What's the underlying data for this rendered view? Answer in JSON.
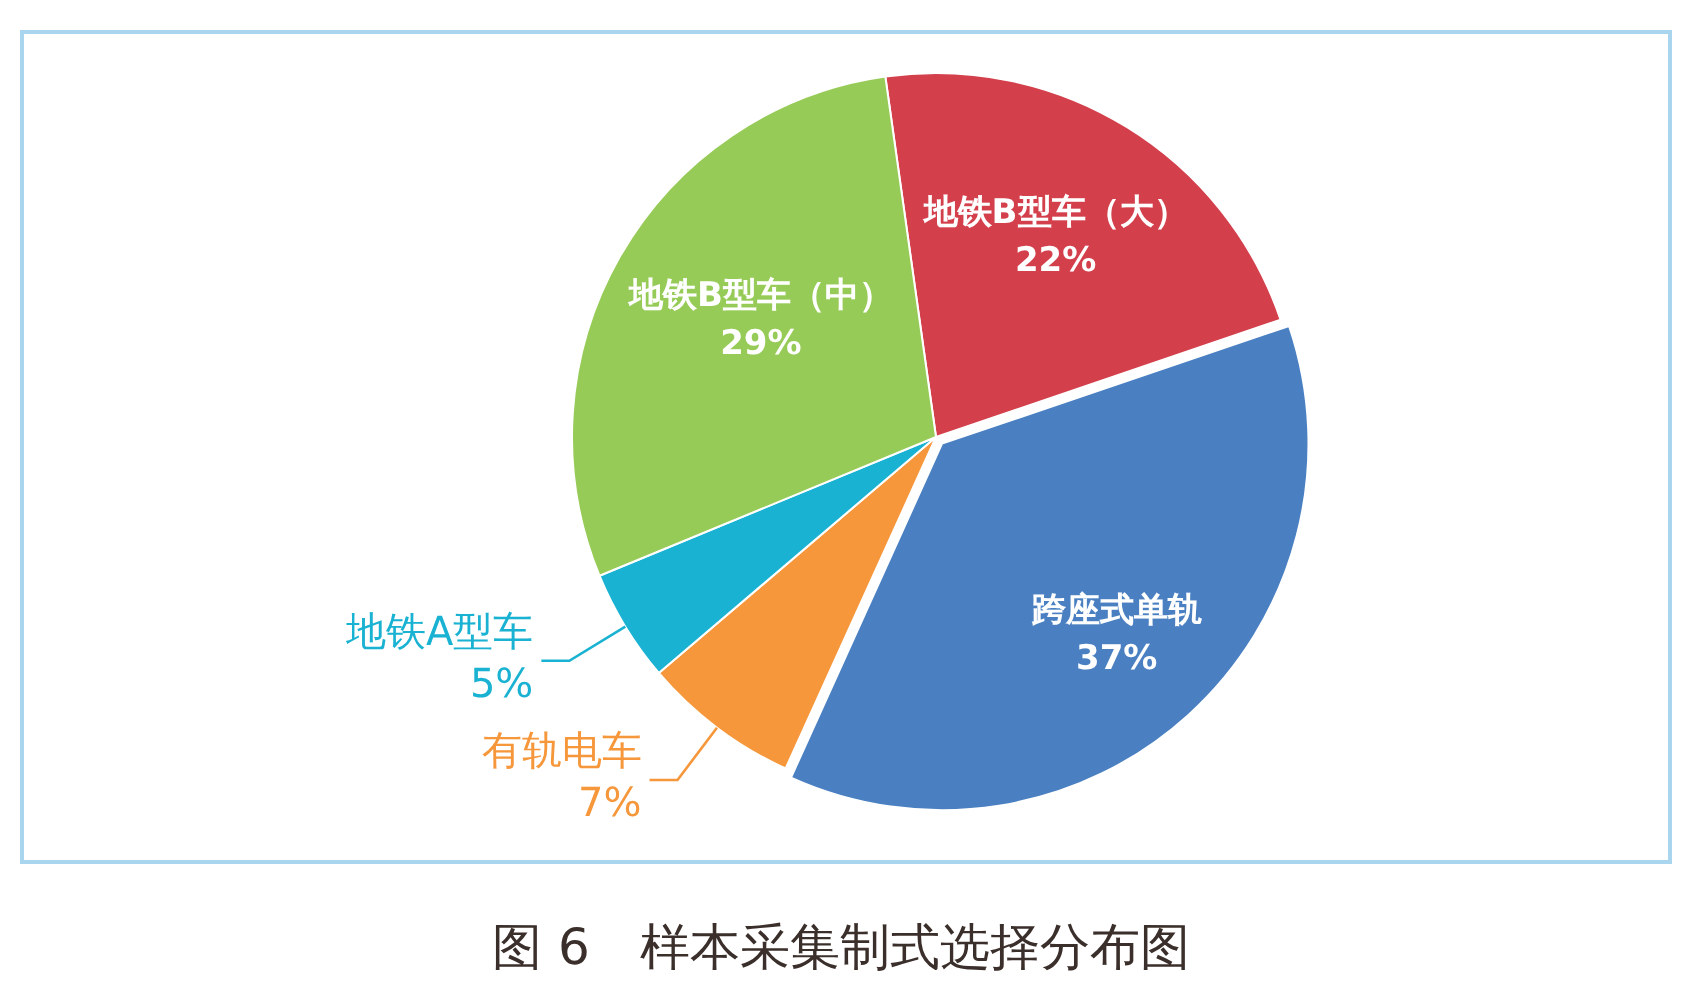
{
  "chart_data": {
    "type": "pie",
    "title": "图 6　样本采集制式选择分布图",
    "categories": [
      "地铁B型车（大）",
      "跨座式单轨",
      "有轨电车",
      "地铁A型车",
      "地铁B型车（中）"
    ],
    "values": [
      22,
      37,
      7,
      5,
      29
    ],
    "colors": [
      "#d3404c",
      "#4a80c2",
      "#f6973b",
      "#1ab2d2",
      "#97cb58"
    ],
    "value_labels": [
      "22%",
      "37%",
      "7%",
      "5%",
      "29%"
    ]
  }
}
